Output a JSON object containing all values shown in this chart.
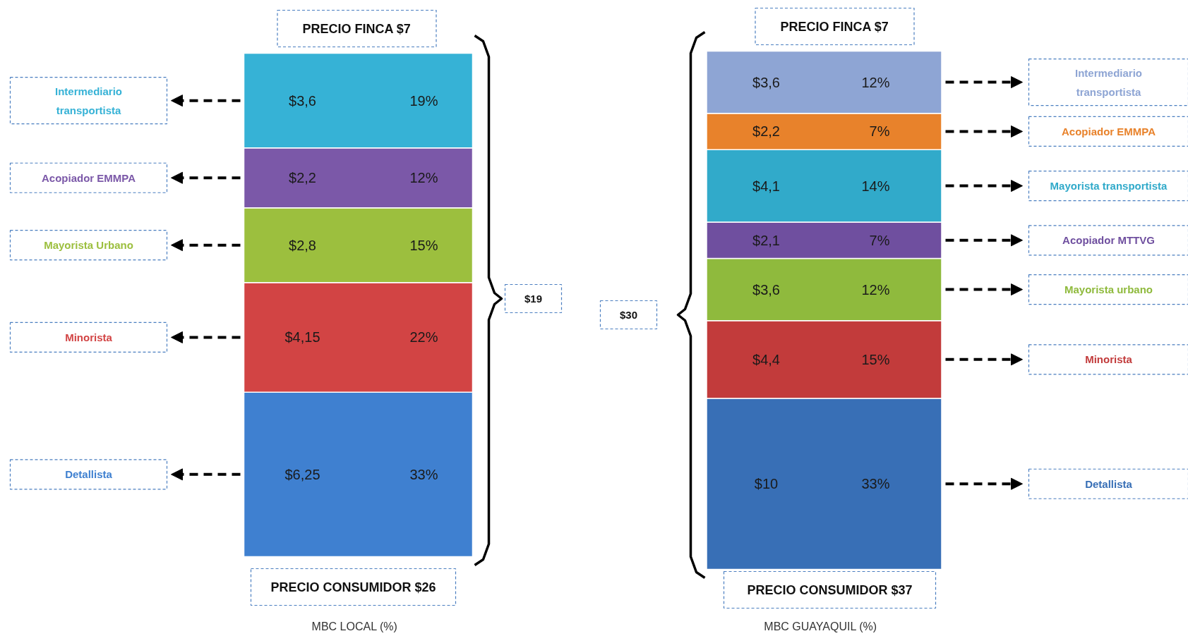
{
  "chart_data": [
    {
      "type": "bar",
      "stacked": true,
      "categories": [
        null
      ],
      "xlabel": "MBC LOCAL (%)",
      "ylim": [
        0,
        101
      ],
      "tick_labels": false,
      "grid": false,
      "legend": false,
      "data_labels": true,
      "annotations": [
        "PRECIO FINCA $7",
        "PRECIO CONSUMIDOR $26",
        "$19",
        "$6,25",
        "$4,15",
        "$2,8",
        "$2,2",
        "$3,6"
      ],
      "series": [
        {
          "name": "Detallista",
          "color": "#3f80d0",
          "values": [
            33
          ],
          "value_labels": [
            "33%"
          ]
        },
        {
          "name": "Minorista",
          "color": "#d24444",
          "values": [
            22
          ],
          "value_labels": [
            "22%"
          ]
        },
        {
          "name": "Mayorista Urbano",
          "color": "#9cbf3e",
          "values": [
            15
          ],
          "value_labels": [
            "15%"
          ]
        },
        {
          "name": "Acopiador EMMPA",
          "color": "#7b58a8",
          "values": [
            12
          ],
          "value_labels": [
            "12%"
          ]
        },
        {
          "name": "Intermediario\ntransportista",
          "color": "#36b2d6",
          "values": [
            19
          ],
          "value_labels": [
            "19%"
          ]
        }
      ]
    },
    {
      "type": "bar",
      "stacked": true,
      "categories": [
        null
      ],
      "xlabel": "MBC GUAYAQUIL (%)",
      "ylim": [
        0,
        100
      ],
      "tick_labels": false,
      "grid": false,
      "legend": false,
      "data_labels": true,
      "annotations": [
        "PRECIO FINCA $7",
        "PRECIO CONSUMIDOR $37",
        "$30",
        "$10",
        "$4,4",
        "$3,6",
        "$2,1",
        "$4,1",
        "$2,2",
        "$3,6"
      ],
      "series": [
        {
          "name": "Detallista",
          "color": "#386fb6",
          "values": [
            33
          ],
          "value_labels": [
            "33%"
          ]
        },
        {
          "name": "Minorista",
          "color": "#c23b3b",
          "values": [
            15
          ],
          "value_labels": [
            "15%"
          ]
        },
        {
          "name": "Mayorista urbano",
          "color": "#8fba3d",
          "values": [
            12
          ],
          "value_labels": [
            "12%"
          ]
        },
        {
          "name": "Acopiador MTTVG",
          "color": "#6f4f9f",
          "values": [
            7
          ],
          "value_labels": [
            "7%"
          ]
        },
        {
          "name": "Mayorista transportista",
          "color": "#31aaca",
          "values": [
            14
          ],
          "value_labels": [
            "14%"
          ]
        },
        {
          "name": "Acopiador EMMPA",
          "color": "#e8822b",
          "values": [
            7
          ],
          "value_labels": [
            "7%"
          ]
        },
        {
          "name": "Intermediario\ntransportista",
          "color": "#8ea5d4",
          "values": [
            12
          ],
          "value_labels": [
            "12%"
          ]
        }
      ]
    }
  ]
}
